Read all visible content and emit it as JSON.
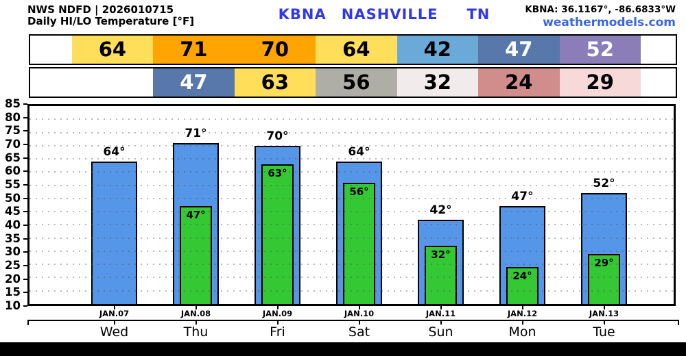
{
  "header": {
    "source_line": "NWS NDFD | 2026010715",
    "subtitle": "Daily HI/LO Temperature [°F]",
    "station": {
      "code": "KBNA",
      "name": "NASHVILLE",
      "state": "TN",
      "color": "#3237E8"
    },
    "coordinates": "KBNA: 36.1167°, -86.6833°W",
    "site": "weathermodels.com",
    "site_color": "#3A66DF"
  },
  "strip": {
    "hi_row": [
      {
        "label": "64",
        "bg": "#FFDE59",
        "fg": "#000000"
      },
      {
        "label": "71",
        "bg": "#FFA400",
        "fg": "#000000"
      },
      {
        "label": "70",
        "bg": "#FFA400",
        "fg": "#000000"
      },
      {
        "label": "64",
        "bg": "#FFDE59",
        "fg": "#000000"
      },
      {
        "label": "42",
        "bg": "#6BA9D8",
        "fg": "#000000"
      },
      {
        "label": "47",
        "bg": "#5878AC",
        "fg": "#FFFFFF"
      },
      {
        "label": "52",
        "bg": "#8A7DB8",
        "fg": "#FFFFFF"
      }
    ],
    "lo_row": [
      {
        "label": "",
        "bg": "#FFFFFF",
        "fg": "#000000"
      },
      {
        "label": "47",
        "bg": "#5878AC",
        "fg": "#FFFFFF"
      },
      {
        "label": "63",
        "bg": "#FFDE59",
        "fg": "#000000"
      },
      {
        "label": "56",
        "bg": "#AEAEA6",
        "fg": "#000000"
      },
      {
        "label": "32",
        "bg": "#F2EBEB",
        "fg": "#000000"
      },
      {
        "label": "24",
        "bg": "#D18C8C",
        "fg": "#000000"
      },
      {
        "label": "29",
        "bg": "#F7D9D9",
        "fg": "#000000"
      }
    ]
  },
  "chart_data": {
    "type": "bar",
    "title": "Daily HI/LO Temperature [°F]",
    "station": "KBNA NASHVILLE TN",
    "categories": [
      "JAN.07",
      "JAN.08",
      "JAN.09",
      "JAN.10",
      "JAN.11",
      "JAN.12",
      "JAN.13"
    ],
    "day_names": [
      "Wed",
      "Thu",
      "Fri",
      "Sat",
      "Sun",
      "Mon",
      "Tue"
    ],
    "series": [
      {
        "name": "HI",
        "color": "#5596E8",
        "values": [
          64,
          71,
          70,
          64,
          42,
          47,
          52
        ],
        "labels": [
          "64°",
          "71°",
          "70°",
          "64°",
          "42°",
          "47°",
          "52°"
        ]
      },
      {
        "name": "LO",
        "color": "#35C835",
        "values": [
          null,
          47,
          63,
          56,
          32,
          24,
          29
        ],
        "labels": [
          "",
          "47°",
          "63°",
          "56°",
          "32°",
          "24°",
          "29°"
        ]
      }
    ],
    "ylim": [
      10,
      85
    ],
    "ytick_step": 5,
    "grid": "horizontal-dotted",
    "legend": "none"
  }
}
